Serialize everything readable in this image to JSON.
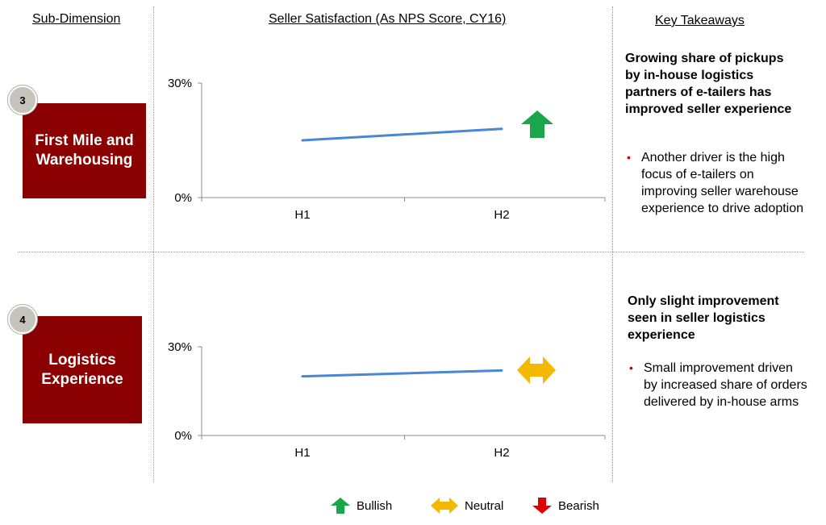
{
  "headers": {
    "sub_dimension": "Sub-Dimension",
    "seller_satisfaction": "Seller Satisfaction (As NPS Score, CY16)",
    "key_takeaways": "Key Takeaways"
  },
  "rows": [
    {
      "number": "3",
      "label_line1": "First Mile and",
      "label_line2": "Warehousing",
      "trend": "bullish",
      "takeaway_title": "Growing share of pickups by in-house logistics partners of e-tailers has improved seller experience",
      "bullet": "Another driver is the high focus of e-tailers on improving seller warehouse experience to drive adoption"
    },
    {
      "number": "4",
      "label_line1": "Logistics",
      "label_line2": "Experience",
      "trend": "neutral",
      "takeaway_title": "Only slight improvement seen in seller logistics experience",
      "bullet": "Small improvement driven by increased share of orders delivered by in-house arms"
    }
  ],
  "chart_data": [
    {
      "type": "line",
      "categories": [
        "H1",
        "H2"
      ],
      "series": [
        {
          "values": [
            15,
            18
          ]
        }
      ],
      "ylim": [
        0,
        30
      ],
      "yticks": [
        "0%",
        "30%"
      ],
      "color": "#4a86d6",
      "grid": false
    },
    {
      "type": "line",
      "categories": [
        "H1",
        "H2"
      ],
      "series": [
        {
          "values": [
            20,
            22
          ]
        }
      ],
      "ylim": [
        0,
        30
      ],
      "yticks": [
        "0%",
        "30%"
      ],
      "color": "#4a86d6",
      "grid": false
    }
  ],
  "legend": [
    {
      "label": "Bullish",
      "color": "#1aa64a",
      "icon": "up-arrow-icon"
    },
    {
      "label": "Neutral",
      "color": "#f5b800",
      "icon": "double-arrow-icon"
    },
    {
      "label": "Bearish",
      "color": "#e00000",
      "icon": "down-arrow-icon"
    }
  ]
}
